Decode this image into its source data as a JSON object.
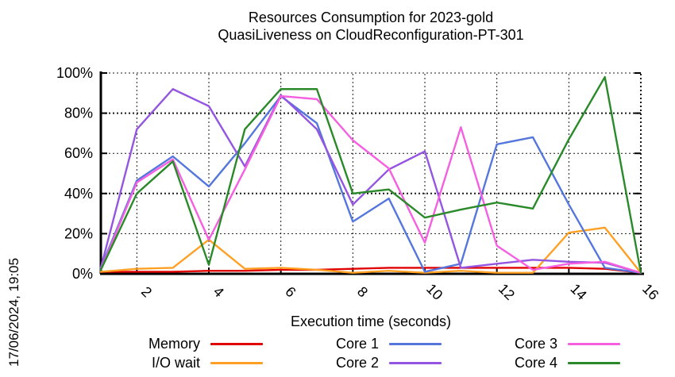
{
  "title": {
    "line1": "Resources Consumption for 2023-gold",
    "line2": "QuasiLiveness on CloudReconfiguration-PT-301"
  },
  "timestamp": "17/06/2024, 19:05",
  "chart_data": {
    "type": "line",
    "title": "Resources Consumption for 2023-gold",
    "subtitle": "QuasiLiveness on CloudReconfiguration-PT-301",
    "xlabel": "Execution time (seconds)",
    "ylabel": "",
    "xlim": [
      1,
      16
    ],
    "ylim": [
      0,
      100
    ],
    "x_ticks": [
      2,
      4,
      6,
      8,
      10,
      12,
      14,
      16
    ],
    "y_ticks": [
      0,
      20,
      40,
      60,
      80,
      100
    ],
    "y_tick_suffix": "%",
    "grid": true,
    "legend_position": "bottom",
    "x": [
      1,
      2,
      3,
      4,
      5,
      6,
      7,
      8,
      9,
      10,
      11,
      12,
      13,
      14,
      15,
      16
    ],
    "series": [
      {
        "name": "Memory",
        "color": "#e00000",
        "values": [
          1,
          1,
          1,
          1.5,
          1.5,
          2,
          2,
          2.5,
          3,
          3,
          3,
          3,
          3,
          3,
          2.5,
          0.5
        ]
      },
      {
        "name": "I/O wait",
        "color": "#ffa024",
        "values": [
          1,
          2.5,
          3,
          17,
          2.5,
          3,
          2,
          0.5,
          1.5,
          0.5,
          1.5,
          0.5,
          0.5,
          20.5,
          23,
          0.5
        ]
      },
      {
        "name": "Core 1",
        "color": "#5577dd",
        "values": [
          3,
          46.5,
          58.5,
          43.5,
          65,
          88.5,
          75,
          26,
          37.5,
          1,
          5,
          64.5,
          68,
          34.5,
          3,
          0.5
        ]
      },
      {
        "name": "Core 2",
        "color": "#9455e0",
        "values": [
          3,
          72,
          92,
          83.5,
          53.5,
          89,
          72,
          34.5,
          52,
          61,
          3,
          5,
          7,
          6,
          5.5,
          0.5
        ]
      },
      {
        "name": "Core 3",
        "color": "#f55fe0",
        "values": [
          2,
          45.5,
          57,
          17,
          52,
          88.5,
          87,
          66.5,
          52.5,
          15.5,
          73,
          14,
          2,
          5,
          6,
          0.5
        ]
      },
      {
        "name": "Core 4",
        "color": "#2a8a2a",
        "values": [
          2,
          40,
          56,
          4.5,
          72,
          92,
          92,
          40,
          42,
          28,
          32,
          35.5,
          32.5,
          67,
          98,
          0.5
        ]
      }
    ]
  }
}
